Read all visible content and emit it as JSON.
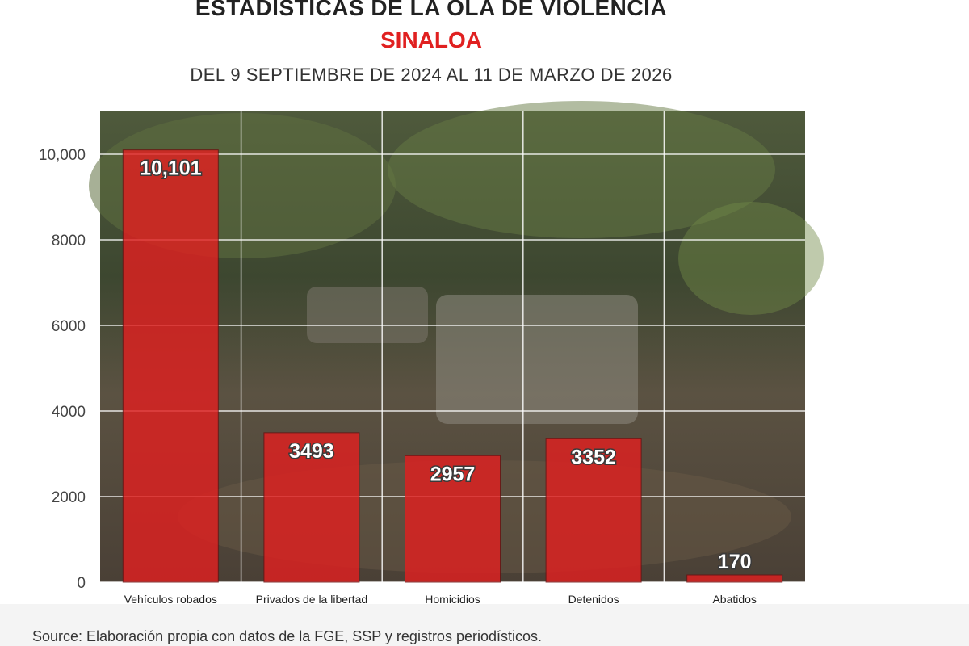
{
  "header": {
    "title": "ESTADÍSTICAS DE LA OLA DE VIOLENCIA",
    "subtitle": "SINALOA",
    "date_range": "DEL 9 SEPTIEMBRE DE 2024 AL 11 DE MARZO DE 2026"
  },
  "footer": {
    "source": "Source: Elaboración propia con datos de la FGE, SSP y registros periodísticos."
  },
  "colors": {
    "bar": "#e02020",
    "subtitle": "#e02020",
    "grid": "#ffffff"
  },
  "chart_data": {
    "type": "bar",
    "categories": [
      "Vehículos robados",
      "Privados de la libertad",
      "Homicidios",
      "Detenidos",
      "Abatidos"
    ],
    "values": [
      10101,
      3493,
      2957,
      3352,
      170
    ],
    "data_labels": [
      "10,101",
      "3493",
      "2957",
      "3352",
      "170"
    ],
    "yticks": [
      0,
      2000,
      4000,
      6000,
      8000,
      10000
    ],
    "ytick_labels": [
      "0",
      "2000",
      "4000",
      "6000",
      "8000",
      "10,000"
    ],
    "ylim": [
      0,
      11000
    ],
    "grid": true,
    "background": "photo of damaged vehicles under trees"
  }
}
